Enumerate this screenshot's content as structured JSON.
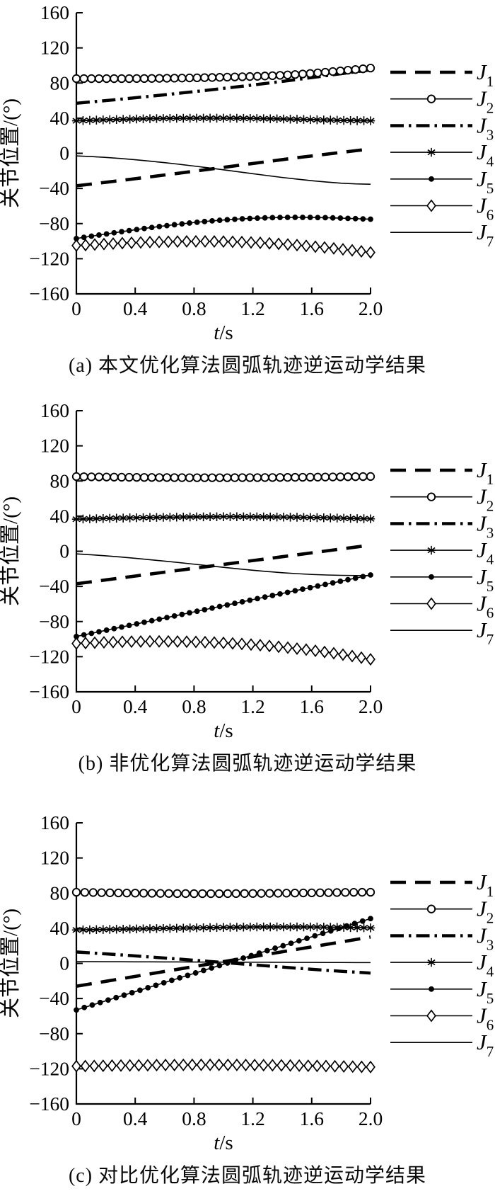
{
  "figures": [
    {
      "id": "a",
      "caption": "(a) 本文优化算法圆弧轨迹逆运动学结果"
    },
    {
      "id": "b",
      "caption": "(b) 非优化算法圆弧轨迹逆运动学结果"
    },
    {
      "id": "c",
      "caption": "(c) 对比优化算法圆弧轨迹逆运动学结果"
    }
  ],
  "axes": {
    "ylabel": "关节位置/(°)",
    "xlabel_italic": "t",
    "xlabel_rest": "/s",
    "xtick_labels": [
      "0",
      "0.4",
      "0.8",
      "1.2",
      "1.6",
      "2.0"
    ],
    "xtick_values": [
      0,
      0.4,
      0.8,
      1.2,
      1.6,
      2.0
    ],
    "ytick_values": [
      160,
      120,
      80,
      40,
      0,
      -40,
      -80,
      -120,
      -160
    ],
    "xlim": [
      0,
      2
    ],
    "ylim": [
      -160,
      160
    ],
    "grid": false
  },
  "colors": {
    "ink": "#000000",
    "background": "#ffffff"
  },
  "legend": {
    "position": "right-outside",
    "entries": [
      "J1",
      "J2",
      "J3",
      "J4",
      "J5",
      "J6",
      "J7"
    ]
  },
  "chart_data": [
    {
      "type": "line",
      "figure": "a",
      "title": "(a) 本文优化算法圆弧轨迹逆运动学结果",
      "xlabel": "t/s",
      "ylabel": "关节位置/(°)",
      "xlim": [
        0,
        2
      ],
      "ylim": [
        -160,
        160
      ],
      "x": [
        0,
        0.1,
        0.2,
        0.3,
        0.4,
        0.5,
        0.6,
        0.7,
        0.8,
        0.9,
        1.0,
        1.1,
        1.2,
        1.3,
        1.4,
        1.5,
        1.6,
        1.7,
        1.8,
        1.9,
        2.0
      ],
      "series": [
        {
          "name": "J1",
          "marker": "none",
          "line": "dashed-thick",
          "values": [
            -37,
            -35,
            -33,
            -31,
            -28.9,
            -26.8,
            -24.7,
            -22.6,
            -20.4,
            -18.2,
            -16,
            -13.8,
            -11.6,
            -9.4,
            -7.2,
            -5,
            -3,
            -1,
            1,
            3,
            5
          ]
        },
        {
          "name": "J2",
          "marker": "open-circle",
          "line": "solid-thin",
          "marker_n": 40,
          "values": [
            85,
            85,
            85,
            85,
            85.1,
            85.2,
            85.4,
            85.6,
            85.9,
            86.2,
            86.6,
            87,
            87.5,
            88.1,
            88.9,
            89.8,
            91,
            92.4,
            93.9,
            95.4,
            97
          ]
        },
        {
          "name": "J3",
          "marker": "none",
          "line": "dashdot-thick",
          "values": [
            57,
            58.5,
            60,
            61.6,
            63.2,
            64.9,
            66.6,
            68.4,
            70.2,
            72,
            73.9,
            75.8,
            77.8,
            79.8,
            81.9,
            84,
            86.2,
            88.4,
            90.6,
            92.8,
            95
          ]
        },
        {
          "name": "J4",
          "marker": "asterisk",
          "line": "solid-thin",
          "marker_n": 45,
          "values": [
            37,
            37.6,
            38.1,
            38.6,
            39,
            39.4,
            39.7,
            39.9,
            40,
            40,
            40,
            39.9,
            39.7,
            39.4,
            39.1,
            38.7,
            38.3,
            37.9,
            37.5,
            37.2,
            37
          ]
        },
        {
          "name": "J5",
          "marker": "filled-circle",
          "line": "solid-thin",
          "marker_n": 40,
          "values": [
            -97,
            -94.4,
            -91.9,
            -89.4,
            -87,
            -84.7,
            -82.6,
            -80.6,
            -78.8,
            -77.2,
            -75.9,
            -74.8,
            -74,
            -73.4,
            -73,
            -72.9,
            -73,
            -73.3,
            -73.8,
            -74.4,
            -75
          ]
        },
        {
          "name": "J6",
          "marker": "open-diamond",
          "line": "solid-thin",
          "marker_n": 33,
          "values": [
            -105,
            -104.1,
            -103.2,
            -102.4,
            -101.7,
            -101.1,
            -100.7,
            -100.4,
            -100.2,
            -100.3,
            -100.5,
            -100.9,
            -101.5,
            -102.3,
            -103.3,
            -104.5,
            -105.9,
            -107.4,
            -109.1,
            -110.9,
            -112.8
          ]
        },
        {
          "name": "J7",
          "marker": "none",
          "line": "solid-thin",
          "values": [
            -3,
            -3.7,
            -4.7,
            -5.9,
            -7.3,
            -8.9,
            -10.6,
            -12.5,
            -14.5,
            -16.6,
            -18.8,
            -21,
            -23.2,
            -25.4,
            -27.5,
            -29.4,
            -31.2,
            -32.7,
            -34,
            -34.8,
            -35.2
          ]
        }
      ]
    },
    {
      "type": "line",
      "figure": "b",
      "title": "(b) 非优化算法圆弧轨迹逆运动学结果",
      "xlabel": "t/s",
      "ylabel": "关节位置/(°)",
      "xlim": [
        0,
        2
      ],
      "ylim": [
        -160,
        160
      ],
      "x": [
        0,
        0.1,
        0.2,
        0.3,
        0.4,
        0.5,
        0.6,
        0.7,
        0.8,
        0.9,
        1.0,
        1.1,
        1.2,
        1.3,
        1.4,
        1.5,
        1.6,
        1.7,
        1.8,
        1.9,
        2.0
      ],
      "series": [
        {
          "name": "J1",
          "marker": "none",
          "line": "dashed-thick",
          "values": [
            -37,
            -34.8,
            -32.6,
            -30.4,
            -28.2,
            -26,
            -23.8,
            -21.6,
            -19.4,
            -17.2,
            -15,
            -12.8,
            -10.6,
            -8.4,
            -6.2,
            -4,
            -1.8,
            0.4,
            2.6,
            4.8,
            7
          ]
        },
        {
          "name": "J2",
          "marker": "open-circle",
          "line": "solid-thin",
          "marker_n": 40,
          "values": [
            85,
            84.7,
            84.5,
            84.3,
            84.1,
            84,
            83.9,
            83.8,
            83.7,
            83.7,
            83.7,
            83.8,
            83.8,
            83.9,
            84,
            84.2,
            84.3,
            84.5,
            84.7,
            84.9,
            85.1
          ]
        },
        {
          "name": "J3",
          "marker": "none",
          "line": "dashdot-thick",
          "overlaps": "J2",
          "values": [
            85,
            84.7,
            84.5,
            84.3,
            84.1,
            84,
            83.9,
            83.8,
            83.7,
            83.7,
            83.7,
            83.8,
            83.8,
            83.9,
            84,
            84.2,
            84.3,
            84.5,
            84.7,
            84.9,
            85.1
          ]
        },
        {
          "name": "J4",
          "marker": "asterisk",
          "line": "solid-thin",
          "marker_n": 45,
          "values": [
            36.5,
            37,
            37.4,
            37.8,
            38.1,
            38.4,
            38.7,
            38.9,
            39.1,
            39.2,
            39.3,
            39.3,
            39.2,
            39.1,
            38.9,
            38.7,
            38.4,
            38.1,
            37.7,
            37.3,
            36.9
          ]
        },
        {
          "name": "J5",
          "marker": "filled-circle",
          "line": "solid-thin",
          "marker_n": 40,
          "values": [
            -97,
            -93.5,
            -90,
            -86.5,
            -83,
            -79.5,
            -76,
            -72.5,
            -69,
            -65.5,
            -62,
            -58.5,
            -55,
            -51.5,
            -48,
            -44.5,
            -41,
            -37.5,
            -34,
            -30.5,
            -27
          ]
        },
        {
          "name": "J6",
          "marker": "open-diamond",
          "line": "solid-thin",
          "marker_n": 33,
          "values": [
            -105,
            -104.2,
            -103.6,
            -103.1,
            -102.8,
            -102.6,
            -102.6,
            -102.8,
            -103.1,
            -103.6,
            -104.3,
            -105.2,
            -106.3,
            -107.6,
            -109.1,
            -110.8,
            -112.7,
            -114.9,
            -117.3,
            -120,
            -123
          ]
        },
        {
          "name": "J7",
          "marker": "none",
          "line": "solid-thin",
          "values": [
            -3,
            -4,
            -5.2,
            -6.5,
            -8,
            -9.6,
            -11.2,
            -12.9,
            -14.7,
            -16.5,
            -18.3,
            -20,
            -21.6,
            -23.1,
            -24.4,
            -25.5,
            -26.4,
            -27,
            -27.4,
            -27.6,
            -27.7
          ]
        }
      ]
    },
    {
      "type": "line",
      "figure": "c",
      "title": "(c) 对比优化算法圆弧轨迹逆运动学结果",
      "xlabel": "t/s",
      "ylabel": "关节位置/(°)",
      "xlim": [
        0,
        2
      ],
      "ylim": [
        -160,
        160
      ],
      "x": [
        0,
        0.1,
        0.2,
        0.3,
        0.4,
        0.5,
        0.6,
        0.7,
        0.8,
        0.9,
        1.0,
        1.1,
        1.2,
        1.3,
        1.4,
        1.5,
        1.6,
        1.7,
        1.8,
        1.9,
        2.0
      ],
      "series": [
        {
          "name": "J1",
          "marker": "none",
          "line": "dashed-thick",
          "values": [
            -26,
            -23.2,
            -20.4,
            -17.6,
            -14.8,
            -12,
            -9.2,
            -6.4,
            -3.6,
            -0.8,
            2,
            4.8,
            7.6,
            10.4,
            13.2,
            16,
            18.8,
            21.6,
            24.4,
            27.2,
            30
          ]
        },
        {
          "name": "J2",
          "marker": "open-circle",
          "line": "none",
          "marker_n": 36,
          "values": [
            81,
            80.7,
            80.4,
            80.2,
            80,
            79.8,
            79.6,
            79.5,
            79.4,
            79.4,
            79.4,
            79.5,
            79.6,
            79.7,
            79.9,
            80.1,
            80.3,
            80.5,
            80.7,
            80.9,
            81
          ]
        },
        {
          "name": "J3",
          "marker": "none",
          "line": "dashdot-thick",
          "values": [
            13,
            11.9,
            10.8,
            9.7,
            8.5,
            7.3,
            6.1,
            4.9,
            3.6,
            2.3,
            1,
            -0.3,
            -1.6,
            -2.9,
            -4.2,
            -5.5,
            -6.7,
            -7.9,
            -9,
            -10,
            -11
          ]
        },
        {
          "name": "J4",
          "marker": "asterisk",
          "line": "solid-thin",
          "marker_n": 45,
          "values": [
            38,
            38.3,
            38.6,
            38.9,
            39.2,
            39.5,
            39.8,
            40.1,
            40.4,
            40.7,
            41,
            41.2,
            41.4,
            41.5,
            41.5,
            41.5,
            41.4,
            41.2,
            41,
            40.7,
            40.4
          ]
        },
        {
          "name": "J5",
          "marker": "filled-circle",
          "line": "solid-thin",
          "marker_n": 38,
          "values": [
            -53,
            -47.8,
            -42.6,
            -37.4,
            -32.2,
            -27,
            -21.8,
            -16.6,
            -11.4,
            -6.2,
            -1,
            4.2,
            9.4,
            14.6,
            19.8,
            25,
            30.2,
            35.4,
            40.6,
            45.8,
            51
          ]
        },
        {
          "name": "J6",
          "marker": "open-diamond",
          "line": "solid-thin",
          "marker_n": 34,
          "values": [
            -117,
            -116.8,
            -116.5,
            -116.3,
            -116.1,
            -115.9,
            -115.7,
            -115.6,
            -115.5,
            -115.5,
            -115.5,
            -115.6,
            -115.7,
            -115.9,
            -116.1,
            -116.3,
            -116.6,
            -116.9,
            -117.2,
            -117.6,
            -118
          ]
        },
        {
          "name": "J7",
          "marker": "none",
          "line": "solid-thin",
          "values": [
            2,
            2,
            1.9,
            1.9,
            1.8,
            1.8,
            1.7,
            1.7,
            1.6,
            1.5,
            1.5,
            1.4,
            1.3,
            1.3,
            1.2,
            1.1,
            1.1,
            1,
            1,
            0.9,
            0.9
          ]
        }
      ]
    }
  ]
}
